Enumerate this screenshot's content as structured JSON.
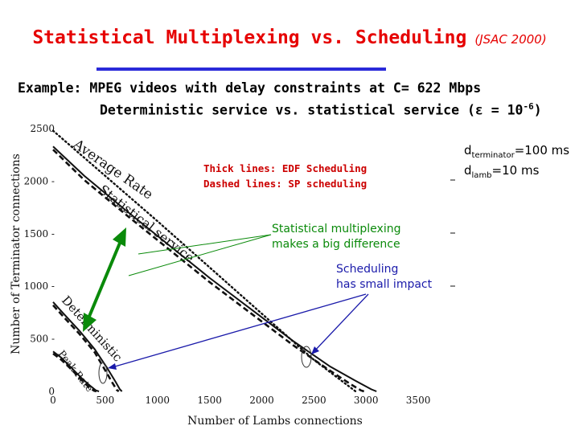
{
  "slide": {
    "title": "Statistical Multiplexing vs. Scheduling",
    "title_ref": "(JSAC 2000)",
    "example_line1": "Example: MPEG videos with delay constraints at C= 622 Mbps",
    "example_line2_prefix": "Deterministic service vs. statistical service (ε = 10",
    "example_line2_exp": "-6",
    "example_line2_suffix": ")",
    "d_terminator_base": "d",
    "d_terminator_sub": "terminator",
    "d_terminator_val": "=100 ms",
    "d_lamb_base": "d",
    "d_lamb_sub": "lamb",
    "d_lamb_val": "=10 ms",
    "annot_thick": "Thick lines: EDF Scheduling",
    "annot_dashed": "Dashed lines: SP scheduling",
    "annot_statmux_1": "Statistical multiplexing",
    "annot_statmux_2": "makes a big difference",
    "annot_sched_1": "Scheduling",
    "annot_sched_2": "has small impact"
  },
  "colors": {
    "title": "#e60000",
    "rule": "#2a2ad9",
    "annot_red": "#cc0000",
    "annot_green": "#0a8a0a",
    "annot_blue": "#1a1aaa"
  },
  "chart_data": {
    "type": "line",
    "xlabel": "Number of Lambs connections",
    "ylabel": "Number of Terminator connections",
    "xlim": [
      0,
      3800
    ],
    "ylim": [
      0,
      2500
    ],
    "x_ticks": [
      "0",
      "500",
      "1000",
      "1500",
      "2000",
      "2500",
      "3000",
      "3500"
    ],
    "x_tick_values": [
      0,
      500,
      1000,
      1500,
      2000,
      2500,
      3000,
      3500
    ],
    "y_ticks": [
      "0",
      "500",
      "1000",
      "1500",
      "2000",
      "2500"
    ],
    "y_tick_values": [
      0,
      500,
      1000,
      1500,
      2000,
      2500
    ],
    "curve_labels": [
      "Average Rate",
      "Statistical service",
      "Deterministic",
      "Peak Rate"
    ],
    "series": [
      {
        "style": "dotted",
        "x": [
          0,
          500,
          1000,
          1500,
          2000,
          2500,
          2900
        ],
        "y": [
          2480,
          2050,
          1620,
          1180,
          740,
          300,
          0
        ]
      },
      {
        "style": "solid-thick",
        "x": [
          0,
          300,
          700,
          1100,
          1500,
          1900,
          2300,
          2650,
          2900,
          3050,
          3100
        ],
        "y": [
          2330,
          2050,
          1720,
          1400,
          1080,
          780,
          480,
          240,
          100,
          20,
          0
        ]
      },
      {
        "style": "dashed-thick",
        "x": [
          0,
          300,
          700,
          1100,
          1500,
          1900,
          2300,
          2650,
          2850,
          2950,
          2980
        ],
        "y": [
          2300,
          2010,
          1680,
          1360,
          1040,
          740,
          440,
          200,
          70,
          10,
          0
        ]
      },
      {
        "style": "solid-thick",
        "x": [
          0,
          100,
          250,
          400,
          520,
          600,
          640,
          660
        ],
        "y": [
          850,
          740,
          580,
          400,
          220,
          90,
          20,
          0
        ]
      },
      {
        "style": "dashed-thick",
        "x": [
          0,
          100,
          250,
          400,
          500,
          570,
          610,
          630
        ],
        "y": [
          820,
          710,
          550,
          370,
          200,
          80,
          15,
          0
        ]
      },
      {
        "style": "solid-thick",
        "x": [
          0,
          80,
          180,
          280,
          360,
          410,
          440
        ],
        "y": [
          380,
          320,
          220,
          120,
          50,
          10,
          0
        ]
      },
      {
        "style": "dashed-thick",
        "x": [
          0,
          80,
          180,
          270,
          340,
          390,
          415
        ],
        "y": [
          360,
          300,
          205,
          110,
          45,
          8,
          0
        ]
      }
    ]
  }
}
